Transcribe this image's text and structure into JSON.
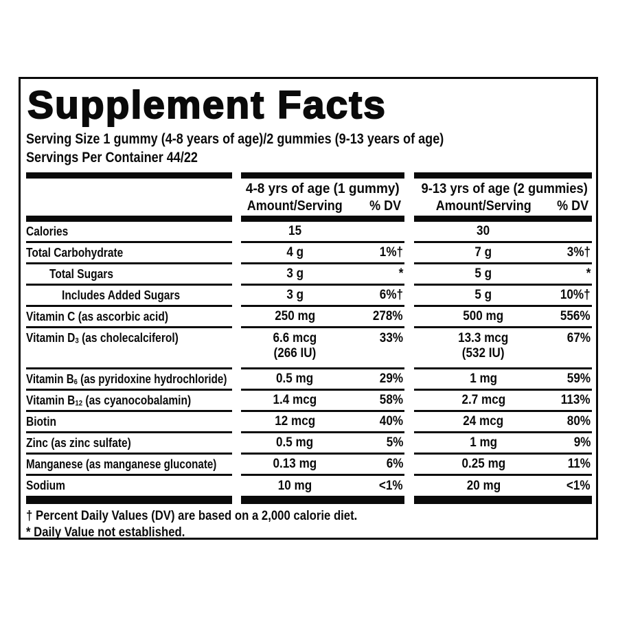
{
  "label": {
    "title": "Supplement Facts",
    "serving_size": "Serving Size 1 gummy (4-8 years of age)/2 gummies (9-13 years of age)",
    "servings_per_container": "Servings Per Container 44/22"
  },
  "table": {
    "group1_header": "4-8 yrs of age (1 gummy)",
    "group2_header": "9-13 yrs of age (2 gummies)",
    "amount_header": "Amount/Serving",
    "dv_header": "% DV",
    "rows": [
      {
        "label_pre": "Calories",
        "col1": {
          "amount": "15",
          "dv": ""
        },
        "col2": {
          "amount": "30",
          "dv": ""
        }
      },
      {
        "label_pre": "Total Carbohydrate",
        "col1": {
          "amount": "4 g",
          "dv": "1%†"
        },
        "col2": {
          "amount": "7 g",
          "dv": "3%†"
        }
      },
      {
        "label_pre": "Total Sugars",
        "col1": {
          "amount": "3 g",
          "dv": "*"
        },
        "col2": {
          "amount": "5 g",
          "dv": "*"
        }
      },
      {
        "label_pre": "Includes Added Sugars",
        "col1": {
          "amount": "3 g",
          "dv": "6%†"
        },
        "col2": {
          "amount": "5 g",
          "dv": "10%†"
        }
      },
      {
        "label_pre": "Vitamin C (as ascorbic acid)",
        "col1": {
          "amount": "250 mg",
          "dv": "278%"
        },
        "col2": {
          "amount": "500 mg",
          "dv": "556%"
        }
      },
      {
        "label_pre": "Vitamin D",
        "label_sub": "3",
        "label_post": " (as cholecalciferol)",
        "col1": {
          "amount": "6.6 mcg",
          "amount2": "(266 IU)",
          "dv": "33%"
        },
        "col2": {
          "amount": "13.3 mcg",
          "amount2": "(532 IU)",
          "dv": "67%"
        }
      },
      {
        "label_pre": "Vitamin B",
        "label_sub": "6",
        "label_post": " (as pyridoxine hydrochloride)",
        "col1": {
          "amount": "0.5 mg",
          "dv": "29%"
        },
        "col2": {
          "amount": "1 mg",
          "dv": "59%"
        }
      },
      {
        "label_pre": "Vitamin B",
        "label_sub": "12",
        "label_post": " (as cyanocobalamin)",
        "col1": {
          "amount": "1.4 mcg",
          "dv": "58%"
        },
        "col2": {
          "amount": "2.7 mcg",
          "dv": "113%"
        }
      },
      {
        "label_pre": "Biotin",
        "col1": {
          "amount": "12 mcg",
          "dv": "40%"
        },
        "col2": {
          "amount": "24 mcg",
          "dv": "80%"
        }
      },
      {
        "label_pre": "Zinc (as zinc sulfate)",
        "col1": {
          "amount": "0.5 mg",
          "dv": "5%"
        },
        "col2": {
          "amount": "1 mg",
          "dv": "9%"
        }
      },
      {
        "label_pre": "Manganese (as manganese gluconate)",
        "col1": {
          "amount": "0.13 mg",
          "dv": "6%"
        },
        "col2": {
          "amount": "0.25 mg",
          "dv": "11%"
        }
      },
      {
        "label_pre": "Sodium",
        "col1": {
          "amount": "10 mg",
          "dv": "<1%"
        },
        "col2": {
          "amount": "20 mg",
          "dv": "<1%"
        }
      }
    ]
  },
  "footnotes": {
    "dagger": "† Percent Daily Values (DV) are based on a 2,000 calorie diet.",
    "asterisk": "* Daily Value not established."
  },
  "colors": {
    "text": "#0a0a0a",
    "background": "#ffffff"
  }
}
